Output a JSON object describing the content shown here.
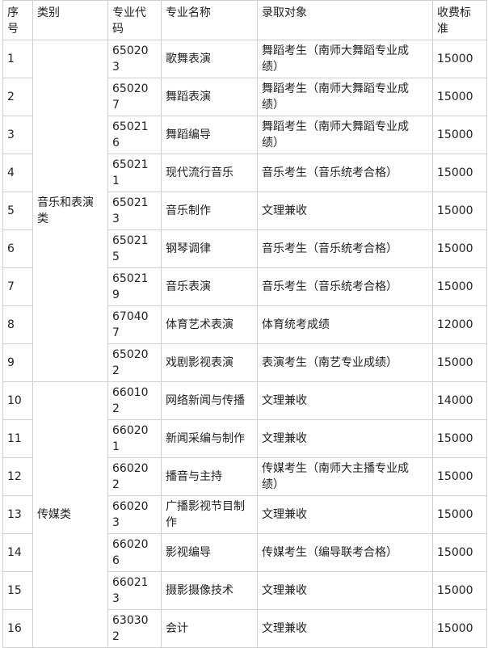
{
  "table": {
    "header": [
      "序号",
      "类别",
      "专业代码",
      "专业名称",
      "录取对象",
      "收费标准"
    ],
    "groups": [
      {
        "category": "音乐和表演类",
        "rows": [
          [
            "1",
            "650203",
            "歌舞表演",
            "舞蹈考生（南师大舞蹈专业成绩）",
            "15000"
          ],
          [
            "2",
            "650207",
            "舞蹈表演",
            "舞蹈考生（南师大舞蹈专业成绩）",
            "15000"
          ],
          [
            "3",
            "650216",
            "舞蹈编导",
            "舞蹈考生（南师大舞蹈专业成绩）",
            "15000"
          ],
          [
            "4",
            "650211",
            "现代流行音乐",
            "音乐考生（音乐统考合格）",
            "15000"
          ],
          [
            "5",
            "650213",
            "音乐制作",
            "文理兼收",
            "15000"
          ],
          [
            "6",
            "650215",
            "钢琴调律",
            "音乐考生（音乐统考合格）",
            "15000"
          ],
          [
            "7",
            "650219",
            "音乐表演",
            "音乐考生（音乐统考合格）",
            "15000"
          ],
          [
            "8",
            "670407",
            "体育艺术表演",
            "体育统考成绩",
            "12000"
          ],
          [
            "9",
            "650202",
            "戏剧影视表演",
            "表演考生（南艺专业成绩）",
            "15000"
          ]
        ]
      },
      {
        "category": "传媒类",
        "rows": [
          [
            "10",
            "660102",
            "网络新闻与传播",
            "文理兼收",
            "14000"
          ],
          [
            "11",
            "660201",
            "新闻采编与制作",
            "文理兼收",
            "15000"
          ],
          [
            "12",
            "660202",
            "播音与主持",
            "传媒考生（南师大主播专业成绩）",
            "15000"
          ],
          [
            "13",
            "660203",
            "广播影视节目制作",
            "文理兼收",
            "15000"
          ],
          [
            "14",
            "660206",
            "影视编导",
            "传媒考生（编导联考合格）",
            "15000"
          ],
          [
            "15",
            "660213",
            "摄影摄像技术",
            "文理兼收",
            "15000"
          ],
          [
            "16",
            "630302",
            "会计",
            "文理兼收",
            "15000"
          ]
        ]
      }
    ]
  }
}
